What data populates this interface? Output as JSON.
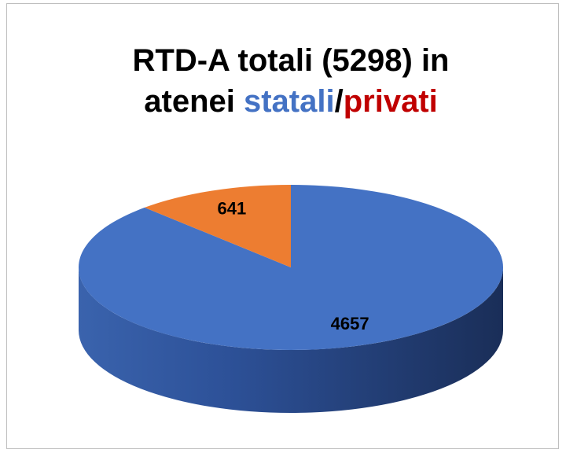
{
  "chart_data": {
    "type": "pie3d",
    "title": [
      {
        "text": "RTD-A totali (5298) in",
        "color": "#000000"
      },
      {
        "text": "atenei ",
        "color": "#000000"
      },
      {
        "text": "statali",
        "color": "#4472c4"
      },
      {
        "text": "/",
        "color": "#000000"
      },
      {
        "text": "privati",
        "color": "#c00000"
      }
    ],
    "values": [
      4657,
      641
    ],
    "colors": [
      "#4472c4",
      "#ed7d31"
    ]
  }
}
